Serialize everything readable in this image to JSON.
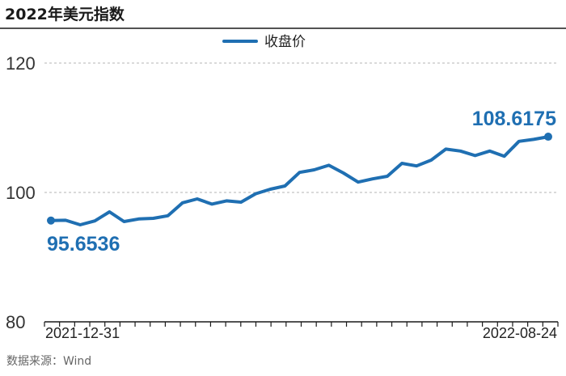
{
  "title": "2022年美元指数",
  "source": "数据来源：Wind",
  "colors": {
    "series": "#1f6fb2",
    "label": "#1f6fb2",
    "grid": "#b5b5b5",
    "rule": "#1a1a1a"
  },
  "chart_data": {
    "type": "line",
    "title": "2022年美元指数",
    "series": [
      {
        "name": "收盘价",
        "values": [
          95.6536,
          95.7,
          95.0,
          95.6,
          97.0,
          95.5,
          95.9,
          96.0,
          96.4,
          98.4,
          99.0,
          98.2,
          98.7,
          98.5,
          99.8,
          100.5,
          101.0,
          103.1,
          103.5,
          104.2,
          103.0,
          101.6,
          102.1,
          102.5,
          104.5,
          104.1,
          105.0,
          106.7,
          106.4,
          105.7,
          106.4,
          105.6,
          107.9,
          108.2,
          108.6175
        ]
      }
    ],
    "x_start_label": "2021-12-31",
    "x_end_label": "2022-08-24",
    "ylim": [
      80,
      120
    ],
    "yticks": [
      "80",
      "100",
      "120"
    ],
    "grid": "horizontal dashed",
    "legend": "top-center",
    "annotations": [
      {
        "label": "95.6536",
        "point": "first"
      },
      {
        "label": "108.6175",
        "point": "last"
      }
    ]
  }
}
